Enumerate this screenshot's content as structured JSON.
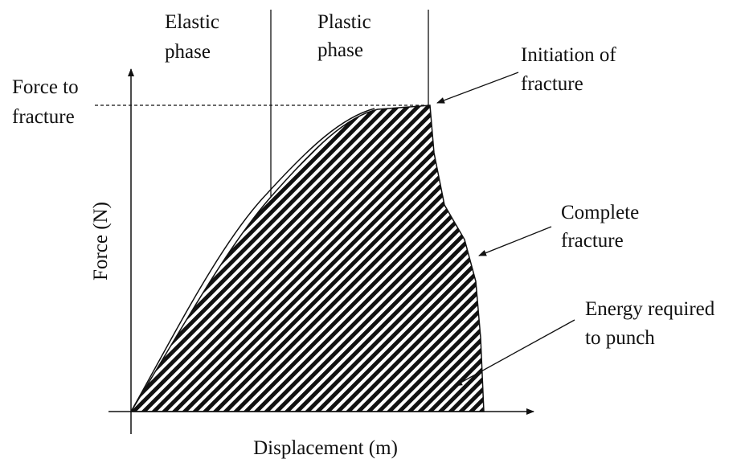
{
  "labels": [
    {
      "lines": [
        "Elastic",
        "phase"
      ]
    },
    {
      "lines": [
        "Plastic",
        "phase"
      ]
    },
    {
      "lines": [
        "Initiation of",
        "fracture"
      ]
    },
    {
      "lines": [
        "Force to",
        "fracture"
      ]
    },
    {
      "lines": [
        "Complete",
        "fracture"
      ]
    },
    {
      "lines": [
        "Energy required",
        "to punch"
      ]
    }
  ],
  "y_axis_label": "Force (N)",
  "x_axis_label": "Displacement (m)"
}
